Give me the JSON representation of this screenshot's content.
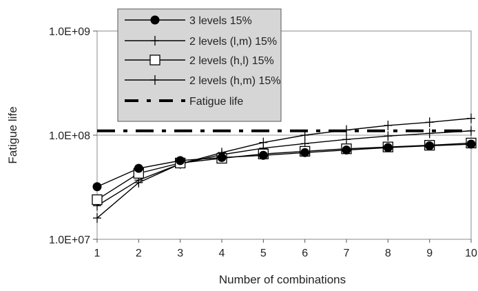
{
  "chart_data": {
    "type": "line",
    "title": "",
    "xlabel": "Number of combinations",
    "ylabel": "Fatigue life",
    "x": [
      1,
      2,
      3,
      4,
      5,
      6,
      7,
      8,
      9,
      10
    ],
    "xlim": [
      1,
      10
    ],
    "y_scale": "log",
    "ylim": [
      10000000,
      1000000000
    ],
    "y_ticks": [
      10000000,
      100000000,
      1000000000
    ],
    "y_tick_labels": [
      "1.0E+07",
      "1.0E+08",
      "1.0E+09"
    ],
    "x_tick_labels": [
      "1",
      "2",
      "3",
      "4",
      "5",
      "6",
      "7",
      "8",
      "9",
      "10"
    ],
    "reference_gridline": 100000000,
    "legend_position": "top-center",
    "series": [
      {
        "name": "3 levels 15%",
        "marker": "filled-circle",
        "values": [
          32000000,
          48000000,
          57000000,
          61000000,
          64000000,
          68000000,
          72000000,
          76000000,
          79000000,
          82000000
        ]
      },
      {
        "name": "2 levels (l,m) 15%",
        "marker": "plus",
        "values": [
          16000000,
          35000000,
          53000000,
          68000000,
          85000000,
          100000000,
          112000000,
          124000000,
          133000000,
          145000000
        ]
      },
      {
        "name": "2 levels (h,l) 15%",
        "marker": "open-square",
        "values": [
          24000000,
          43000000,
          54000000,
          60000000,
          66000000,
          70000000,
          74000000,
          77000000,
          80000000,
          84000000
        ]
      },
      {
        "name": "2 levels (h,m) 15%",
        "marker": "plus",
        "values": [
          21000000,
          37000000,
          53000000,
          65000000,
          75000000,
          83000000,
          91000000,
          98000000,
          104000000,
          110000000
        ]
      },
      {
        "name": "Fatigue life",
        "marker": "none",
        "line": "dash",
        "values": [
          110000000,
          110000000,
          110000000,
          110000000,
          110000000,
          110000000,
          110000000,
          110000000,
          110000000,
          110000000
        ]
      }
    ]
  }
}
